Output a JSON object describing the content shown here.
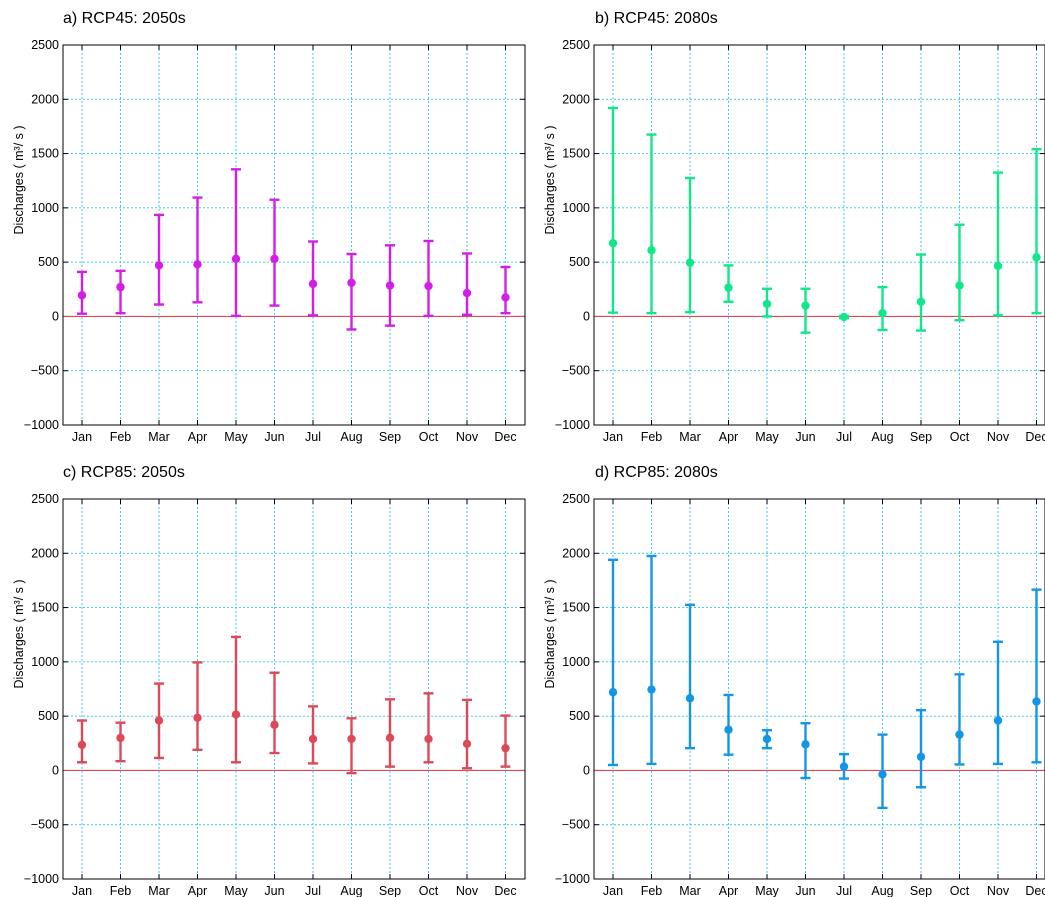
{
  "chart_data": [
    {
      "type": "errorbar",
      "title": "a) RCP45: 2050s",
      "ylabel": "Discharges ( m³/ s )",
      "ylim": [
        -1000,
        2500
      ],
      "yticks": [
        -1000,
        -500,
        0,
        500,
        1000,
        1500,
        2000,
        2500
      ],
      "grid": true,
      "reference_line": 0,
      "color": "#d21ee6",
      "categories": [
        "Jan",
        "Feb",
        "Mar",
        "Apr",
        "May",
        "Jun",
        "Jul",
        "Aug",
        "Sep",
        "Oct",
        "Nov",
        "Dec"
      ],
      "values": [
        195,
        270,
        470,
        480,
        530,
        530,
        300,
        310,
        285,
        280,
        215,
        175
      ],
      "lower": [
        25,
        30,
        110,
        130,
        5,
        100,
        10,
        -120,
        -85,
        5,
        15,
        30
      ],
      "upper": [
        410,
        420,
        935,
        1095,
        1355,
        1075,
        690,
        575,
        655,
        695,
        580,
        455
      ]
    },
    {
      "type": "errorbar",
      "title": "b) RCP45: 2080s",
      "ylabel": "Discharges ( m³/ s )",
      "ylim": [
        -1000,
        2500
      ],
      "yticks": [
        -1000,
        -500,
        0,
        500,
        1000,
        1500,
        2000,
        2500
      ],
      "grid": true,
      "reference_line": 0,
      "color": "#11e68a",
      "categories": [
        "Jan",
        "Feb",
        "Mar",
        "Apr",
        "May",
        "Jun",
        "Jul",
        "Aug",
        "Sep",
        "Oct",
        "Nov",
        "Dec"
      ],
      "values": [
        675,
        610,
        495,
        265,
        115,
        100,
        -5,
        30,
        135,
        285,
        465,
        545
      ],
      "lower": [
        35,
        30,
        40,
        135,
        0,
        -150,
        -15,
        -125,
        -130,
        -35,
        10,
        30
      ],
      "upper": [
        1920,
        1675,
        1275,
        470,
        255,
        255,
        5,
        270,
        570,
        845,
        1325,
        1540
      ]
    },
    {
      "type": "errorbar",
      "title": "c) RCP85: 2050s",
      "ylabel": "Discharges ( m³/ s )",
      "ylim": [
        -1000,
        2500
      ],
      "yticks": [
        -1000,
        -500,
        0,
        500,
        1000,
        1500,
        2000,
        2500
      ],
      "grid": true,
      "reference_line": 0,
      "color": "#dc4a5a",
      "categories": [
        "Jan",
        "Feb",
        "Mar",
        "Apr",
        "May",
        "Jun",
        "Jul",
        "Aug",
        "Sep",
        "Oct",
        "Nov",
        "Dec"
      ],
      "values": [
        235,
        300,
        460,
        485,
        515,
        420,
        290,
        290,
        300,
        290,
        245,
        205
      ],
      "lower": [
        75,
        85,
        115,
        190,
        75,
        160,
        65,
        -25,
        35,
        75,
        20,
        35
      ],
      "upper": [
        460,
        440,
        800,
        995,
        1230,
        900,
        590,
        480,
        655,
        710,
        650,
        505
      ]
    },
    {
      "type": "errorbar",
      "title": "d) RCP85: 2080s",
      "ylabel": "Discharges ( m³/ s )",
      "ylim": [
        -1000,
        2500
      ],
      "yticks": [
        -1000,
        -500,
        0,
        500,
        1000,
        1500,
        2000,
        2500
      ],
      "grid": true,
      "reference_line": 0,
      "color": "#1496e6",
      "categories": [
        "Jan",
        "Feb",
        "Mar",
        "Apr",
        "May",
        "Jun",
        "Jul",
        "Aug",
        "Sep",
        "Oct",
        "Nov",
        "Dec"
      ],
      "values": [
        720,
        745,
        665,
        375,
        290,
        240,
        35,
        -35,
        125,
        330,
        460,
        635
      ],
      "lower": [
        50,
        60,
        205,
        145,
        205,
        -70,
        -75,
        -345,
        -155,
        55,
        60,
        75
      ],
      "upper": [
        1940,
        1975,
        1525,
        695,
        370,
        435,
        150,
        330,
        555,
        885,
        1185,
        1665
      ]
    }
  ]
}
